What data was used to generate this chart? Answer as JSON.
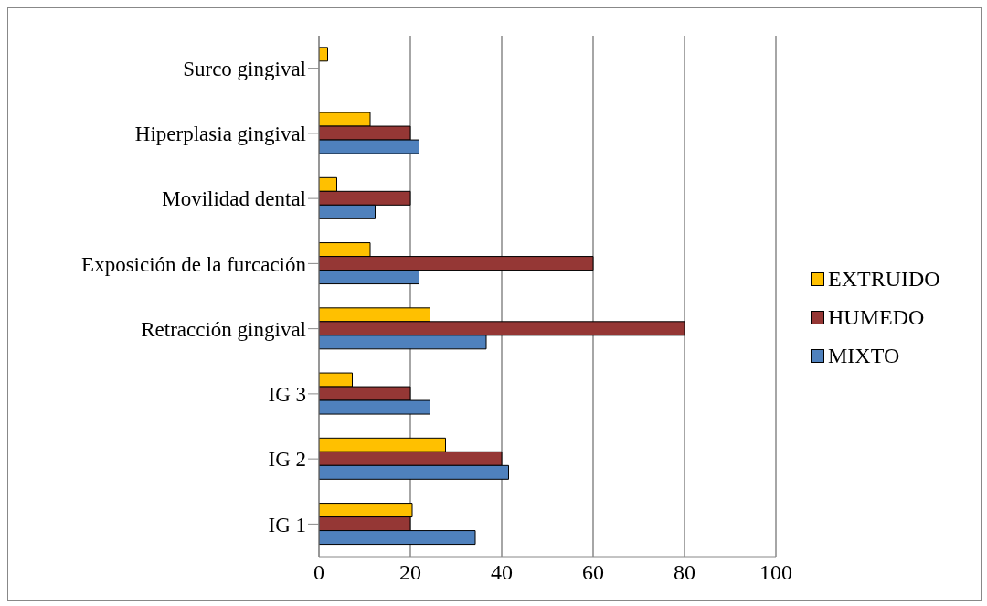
{
  "chart_data": {
    "type": "bar",
    "orientation": "horizontal",
    "categories": [
      "Surco gingival",
      "Hiperplasia gingival",
      "Movilidad dental",
      "Exposición de la furcación",
      "Retracción gingival",
      "IG 3",
      "IG 2",
      "IG 1"
    ],
    "series": [
      {
        "name": "EXTRUIDO",
        "color": "#ffc000",
        "values": [
          1.9,
          11.2,
          3.9,
          11.2,
          24.3,
          7.3,
          27.7,
          20.4
        ]
      },
      {
        "name": "HUMEDO",
        "color": "#953735",
        "values": [
          0,
          20,
          20,
          60,
          80,
          20,
          40,
          20
        ]
      },
      {
        "name": "MIXTO",
        "color": "#4f81bd",
        "values": [
          0,
          21.9,
          12.3,
          21.9,
          36.6,
          24.3,
          41.5,
          34.2
        ]
      }
    ],
    "xlim": [
      0,
      100
    ],
    "xticks": [
      0,
      20,
      40,
      60,
      80,
      100
    ],
    "grid": "x",
    "legend": "right"
  }
}
